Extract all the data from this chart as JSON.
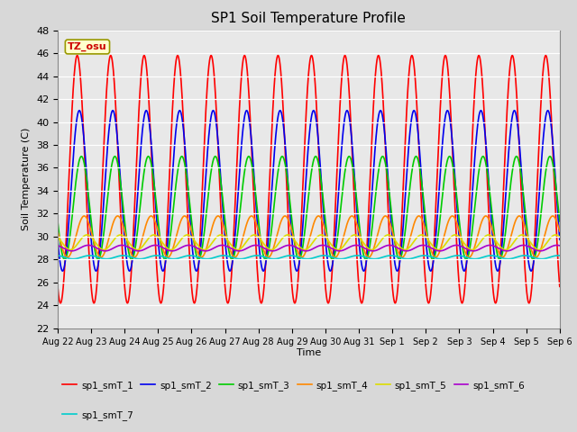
{
  "title": "SP1 Soil Temperature Profile",
  "xlabel": "Time",
  "ylabel": "Soil Temperature (C)",
  "ylim": [
    22,
    48
  ],
  "xlim_days": 15,
  "n_points": 3600,
  "series": [
    {
      "name": "sp1_smT_1",
      "color": "#FF0000",
      "lw": 1.2,
      "amp": 10.8,
      "mean": 35.0,
      "phase_hours": 14.0
    },
    {
      "name": "sp1_smT_2",
      "color": "#0000EE",
      "lw": 1.2,
      "amp": 7.0,
      "mean": 34.0,
      "phase_hours": 15.5
    },
    {
      "name": "sp1_smT_3",
      "color": "#00CC00",
      "lw": 1.2,
      "amp": 4.5,
      "mean": 32.5,
      "phase_hours": 17.0
    },
    {
      "name": "sp1_smT_4",
      "color": "#FF8800",
      "lw": 1.2,
      "amp": 1.8,
      "mean": 30.0,
      "phase_hours": 19.0
    },
    {
      "name": "sp1_smT_5",
      "color": "#DDDD00",
      "lw": 1.2,
      "amp": 0.65,
      "mean": 29.5,
      "phase_hours": 21.0
    },
    {
      "name": "sp1_smT_6",
      "color": "#AA00CC",
      "lw": 1.2,
      "amp": 0.25,
      "mean": 29.0,
      "phase_hours": 22.0
    },
    {
      "name": "sp1_smT_7",
      "color": "#00CCCC",
      "lw": 1.2,
      "amp": 0.15,
      "mean": 28.2,
      "phase_hours": 23.0
    }
  ],
  "period_hours": 24,
  "bg_color": "#D8D8D8",
  "plot_bg": "#E8E8E8",
  "tz_label": "TZ_osu",
  "tz_label_color": "#CC0000",
  "tz_box_color": "#FFFFCC",
  "tz_box_edge": "#999900",
  "x_tick_labels": [
    "Aug 22",
    "Aug 23",
    "Aug 24",
    "Aug 25",
    "Aug 26",
    "Aug 27",
    "Aug 28",
    "Aug 29",
    "Aug 30",
    "Aug 31",
    "Sep 1",
    "Sep 2",
    "Sep 3",
    "Sep 4",
    "Sep 5",
    "Sep 6"
  ],
  "x_tick_positions": [
    0,
    1,
    2,
    3,
    4,
    5,
    6,
    7,
    8,
    9,
    10,
    11,
    12,
    13,
    14,
    15
  ],
  "yticks": [
    22,
    24,
    26,
    28,
    30,
    32,
    34,
    36,
    38,
    40,
    42,
    44,
    46,
    48
  ]
}
